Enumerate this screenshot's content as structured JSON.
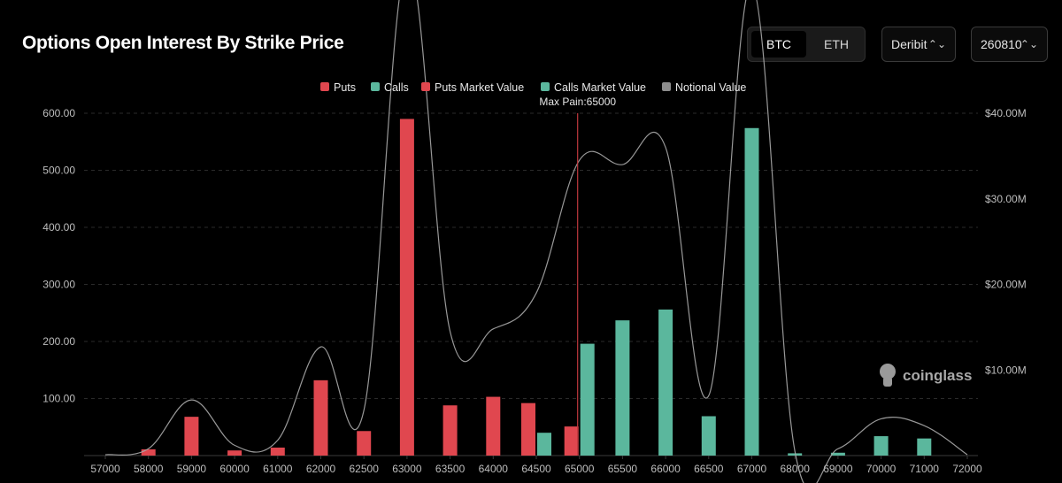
{
  "header": {
    "title": "Options Open Interest By Strike Price",
    "coins": [
      {
        "label": "BTC",
        "active": true
      },
      {
        "label": "ETH",
        "active": false
      }
    ],
    "exchange_select": "Deribit",
    "expiry_select": "260810",
    "select_icon": "chevron-updown-icon"
  },
  "colors": {
    "puts": "#e0474f",
    "calls": "#5bb79d",
    "notional": "#8c8c8c",
    "max_pain_line": "#c0393f",
    "grid": "#2a2a2a",
    "axis_text": "#bdbdbd"
  },
  "watermark": "coinglass",
  "chart_data": {
    "type": "bar",
    "title": "Options Open Interest By Strike Price",
    "categories": [
      "57000",
      "58000",
      "59000",
      "60000",
      "61000",
      "62000",
      "62500",
      "63000",
      "63500",
      "64000",
      "64500",
      "65000",
      "65500",
      "66000",
      "66500",
      "67000",
      "68000",
      "69000",
      "70000",
      "71000",
      "72000"
    ],
    "series": [
      {
        "name": "Puts",
        "values": [
          0,
          11,
          68,
          9,
          14,
          132,
          43,
          590,
          88,
          103,
          92,
          51,
          0,
          0,
          0,
          0,
          0,
          0,
          0,
          0,
          0
        ]
      },
      {
        "name": "Calls",
        "values": [
          0,
          0,
          0,
          0,
          0,
          0,
          0,
          0,
          0,
          0,
          40,
          196,
          237,
          256,
          69,
          574,
          4,
          5,
          34,
          30,
          0
        ]
      }
    ],
    "legend": [
      "Puts",
      "Calls",
      "Puts Market Value",
      "Calls Market Value",
      "Notional Value"
    ],
    "legend_position": "top-center",
    "y_left": {
      "min": 0,
      "max": 600,
      "ticks": [
        "600.00",
        "500.00",
        "400.00",
        "300.00",
        "200.00",
        "100.00"
      ]
    },
    "y_right": {
      "min": 0,
      "max": 40,
      "unit": "M",
      "ticks": [
        "$40.00M",
        "$30.00M",
        "$20.00M",
        "$10.00M"
      ]
    },
    "notional_line": {
      "name": "Notional Value",
      "x": [
        "57000",
        "58000",
        "59000",
        "60000",
        "61000",
        "62000",
        "62500",
        "63000",
        "63500",
        "64000",
        "64500",
        "65000",
        "65500",
        "66000",
        "66500",
        "67000",
        "68000",
        "69000",
        "70000",
        "71000",
        "72000"
      ],
      "y": [
        0.1,
        0.8,
        6.5,
        1.2,
        1.8,
        12.7,
        5.3,
        57.5,
        14.5,
        14.8,
        19.0,
        34.5,
        34.0,
        36.0,
        7.0,
        55.0,
        0.5,
        0.8,
        4.3,
        3.5,
        0.1
      ]
    },
    "max_pain": {
      "label": "Max Pain:65000",
      "strike": "65000"
    },
    "grid": true
  }
}
